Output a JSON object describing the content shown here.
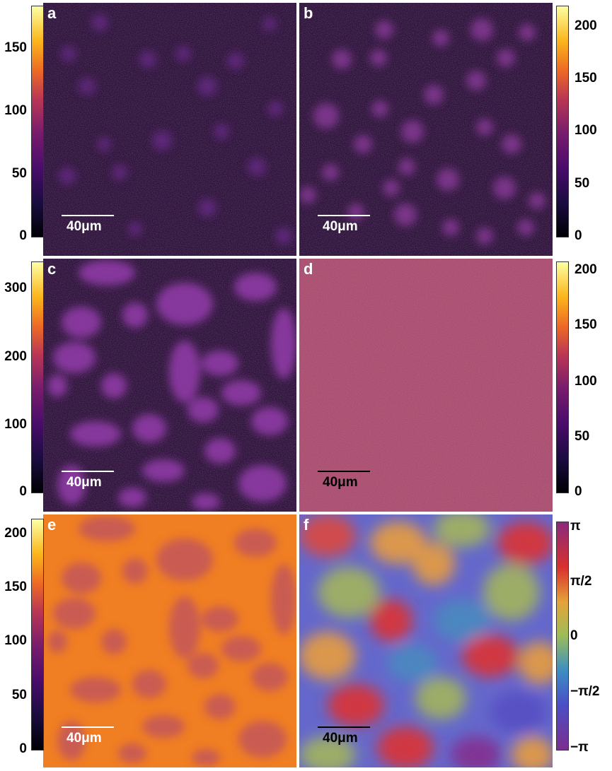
{
  "panels": [
    {
      "label": "a",
      "scalebar": "40μm"
    },
    {
      "label": "b",
      "scalebar": "40μm"
    },
    {
      "label": "c",
      "scalebar": "40μm"
    },
    {
      "label": "d",
      "scalebar": "40μm"
    },
    {
      "label": "e",
      "scalebar": "40μm"
    },
    {
      "label": "f",
      "scalebar": "40μm"
    }
  ],
  "colorbars": {
    "a": {
      "ticks": [
        "0",
        "50",
        "100",
        "150"
      ],
      "colormap": "inferno"
    },
    "b": {
      "ticks": [
        "0",
        "50",
        "100",
        "150",
        "200"
      ],
      "colormap": "inferno"
    },
    "c": {
      "ticks": [
        "0",
        "100",
        "200",
        "300"
      ],
      "colormap": "inferno"
    },
    "d": {
      "ticks": [
        "0",
        "50",
        "100",
        "150",
        "200"
      ],
      "colormap": "inferno"
    },
    "e": {
      "ticks": [
        "0",
        "50",
        "100",
        "150",
        "200"
      ],
      "colormap": "inferno"
    },
    "f": {
      "ticks": [
        "−π",
        "−π/2",
        "0",
        "π/2",
        "π"
      ],
      "colormap": "phase-rainbow"
    }
  }
}
